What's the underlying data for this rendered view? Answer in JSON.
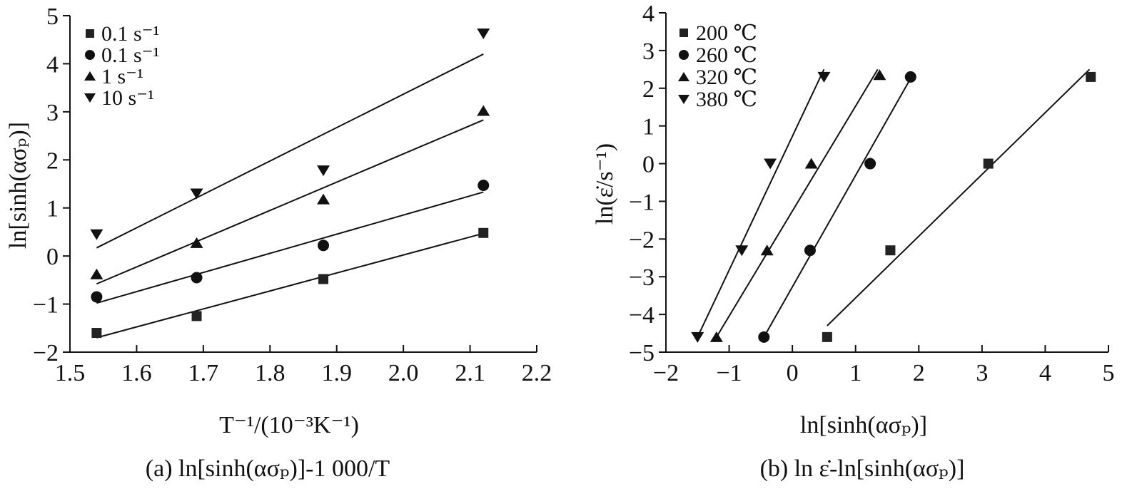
{
  "chart_data": [
    {
      "type": "scatter",
      "caption": "(a) ln[sinh(ασₚ)]-1 000/T",
      "xlabel": "T⁻¹/(10⁻³K⁻¹)",
      "ylabel": "ln[sinh(ασₚ)]",
      "xlim": [
        1.5,
        2.2
      ],
      "ylim": [
        -2,
        5
      ],
      "xticks": [
        "1.5",
        "1.6",
        "1.7",
        "1.8",
        "1.9",
        "2.0",
        "2.1",
        "2.2"
      ],
      "yticks": [
        "−2",
        "−1",
        "0",
        "1",
        "2",
        "3",
        "4",
        "5"
      ],
      "grid": false,
      "legend_position": "top-left",
      "series": [
        {
          "name": "0.1 s⁻¹",
          "marker": "square",
          "x": [
            1.54,
            1.69,
            1.88,
            2.12
          ],
          "y": [
            -1.6,
            -1.25,
            -0.48,
            0.48
          ],
          "fit": [
            [
              1.54,
              -1.7
            ],
            [
              2.12,
              0.47
            ]
          ]
        },
        {
          "name": "0.1 s⁻¹",
          "marker": "circle",
          "x": [
            1.54,
            1.69,
            1.88,
            2.12
          ],
          "y": [
            -0.85,
            -0.45,
            0.22,
            1.47
          ],
          "fit": [
            [
              1.54,
              -0.98
            ],
            [
              2.12,
              1.33
            ]
          ]
        },
        {
          "name": "1 s⁻¹",
          "marker": "triangle-up",
          "x": [
            1.54,
            1.69,
            1.88,
            2.12
          ],
          "y": [
            -0.38,
            0.27,
            1.18,
            3.02
          ],
          "fit": [
            [
              1.54,
              -0.58
            ],
            [
              2.12,
              2.83
            ]
          ]
        },
        {
          "name": "10 s⁻¹",
          "marker": "triangle-down",
          "x": [
            1.54,
            1.69,
            1.88,
            2.12
          ],
          "y": [
            0.45,
            1.3,
            1.78,
            4.63
          ],
          "fit": [
            [
              1.54,
              0.17
            ],
            [
              2.12,
              4.2
            ]
          ]
        }
      ]
    },
    {
      "type": "scatter",
      "caption": "(b) ln ε̇-ln[sinh(ασₚ)]",
      "xlabel": "ln[sinh(ασₚ)]",
      "ylabel": "ln(ε̇/s⁻¹)",
      "xlim": [
        -2,
        5
      ],
      "ylim": [
        -5,
        4
      ],
      "xticks": [
        "−2",
        "−1",
        "0",
        "1",
        "2",
        "3",
        "4",
        "5"
      ],
      "yticks": [
        "−5",
        "−4",
        "−3",
        "−2",
        "−1",
        "0",
        "1",
        "2",
        "3",
        "4"
      ],
      "grid": false,
      "legend_position": "top-left",
      "series": [
        {
          "name": "200 ℃",
          "marker": "square",
          "x": [
            0.55,
            1.55,
            3.1,
            4.72
          ],
          "y": [
            -4.6,
            -2.3,
            0,
            2.3
          ],
          "fit": [
            [
              0.55,
              -4.3
            ],
            [
              4.7,
              2.5
            ]
          ]
        },
        {
          "name": "260 ℃",
          "marker": "circle",
          "x": [
            -0.45,
            0.28,
            1.23,
            1.87
          ],
          "y": [
            -4.6,
            -2.3,
            0,
            2.3
          ],
          "fit": [
            [
              -0.45,
              -4.6
            ],
            [
              1.85,
              2.2
            ]
          ]
        },
        {
          "name": "320 ℃",
          "marker": "triangle-up",
          "x": [
            -1.2,
            -0.4,
            0.3,
            1.38
          ],
          "y": [
            -4.6,
            -2.3,
            0,
            2.35
          ],
          "fit": [
            [
              -1.2,
              -4.6
            ],
            [
              1.35,
              2.5
            ]
          ]
        },
        {
          "name": "380 ℃",
          "marker": "triangle-down",
          "x": [
            -1.5,
            -0.8,
            -0.35,
            0.5
          ],
          "y": [
            -4.6,
            -2.3,
            0,
            2.3
          ],
          "fit": [
            [
              -1.5,
              -4.6
            ],
            [
              0.5,
              2.5
            ]
          ]
        }
      ]
    }
  ]
}
